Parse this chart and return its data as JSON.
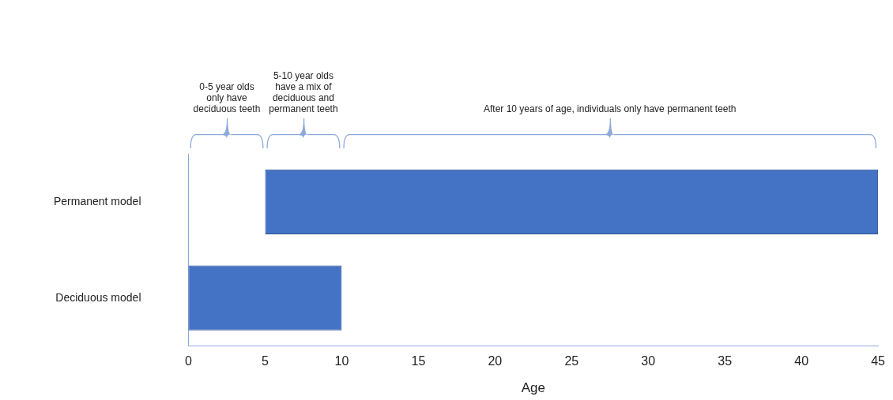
{
  "chart_data": {
    "type": "bar",
    "orientation": "horizontal",
    "xlabel": "Age",
    "categories": [
      "Permanent model",
      "Deciduous model"
    ],
    "base": [
      5,
      0
    ],
    "values": [
      40,
      10
    ],
    "color": "#4472c4",
    "xlim": [
      0,
      45
    ],
    "xticks": [
      0,
      5,
      10,
      15,
      20,
      25,
      30,
      35,
      40,
      45
    ],
    "grid": false,
    "legend": false,
    "annotations": [
      "0-5 year olds only have deciduous teeth",
      "5-10 year olds have a mix of deciduous and permanent teeth",
      "After 10 years of age, individuals only have permanent teeth"
    ]
  }
}
